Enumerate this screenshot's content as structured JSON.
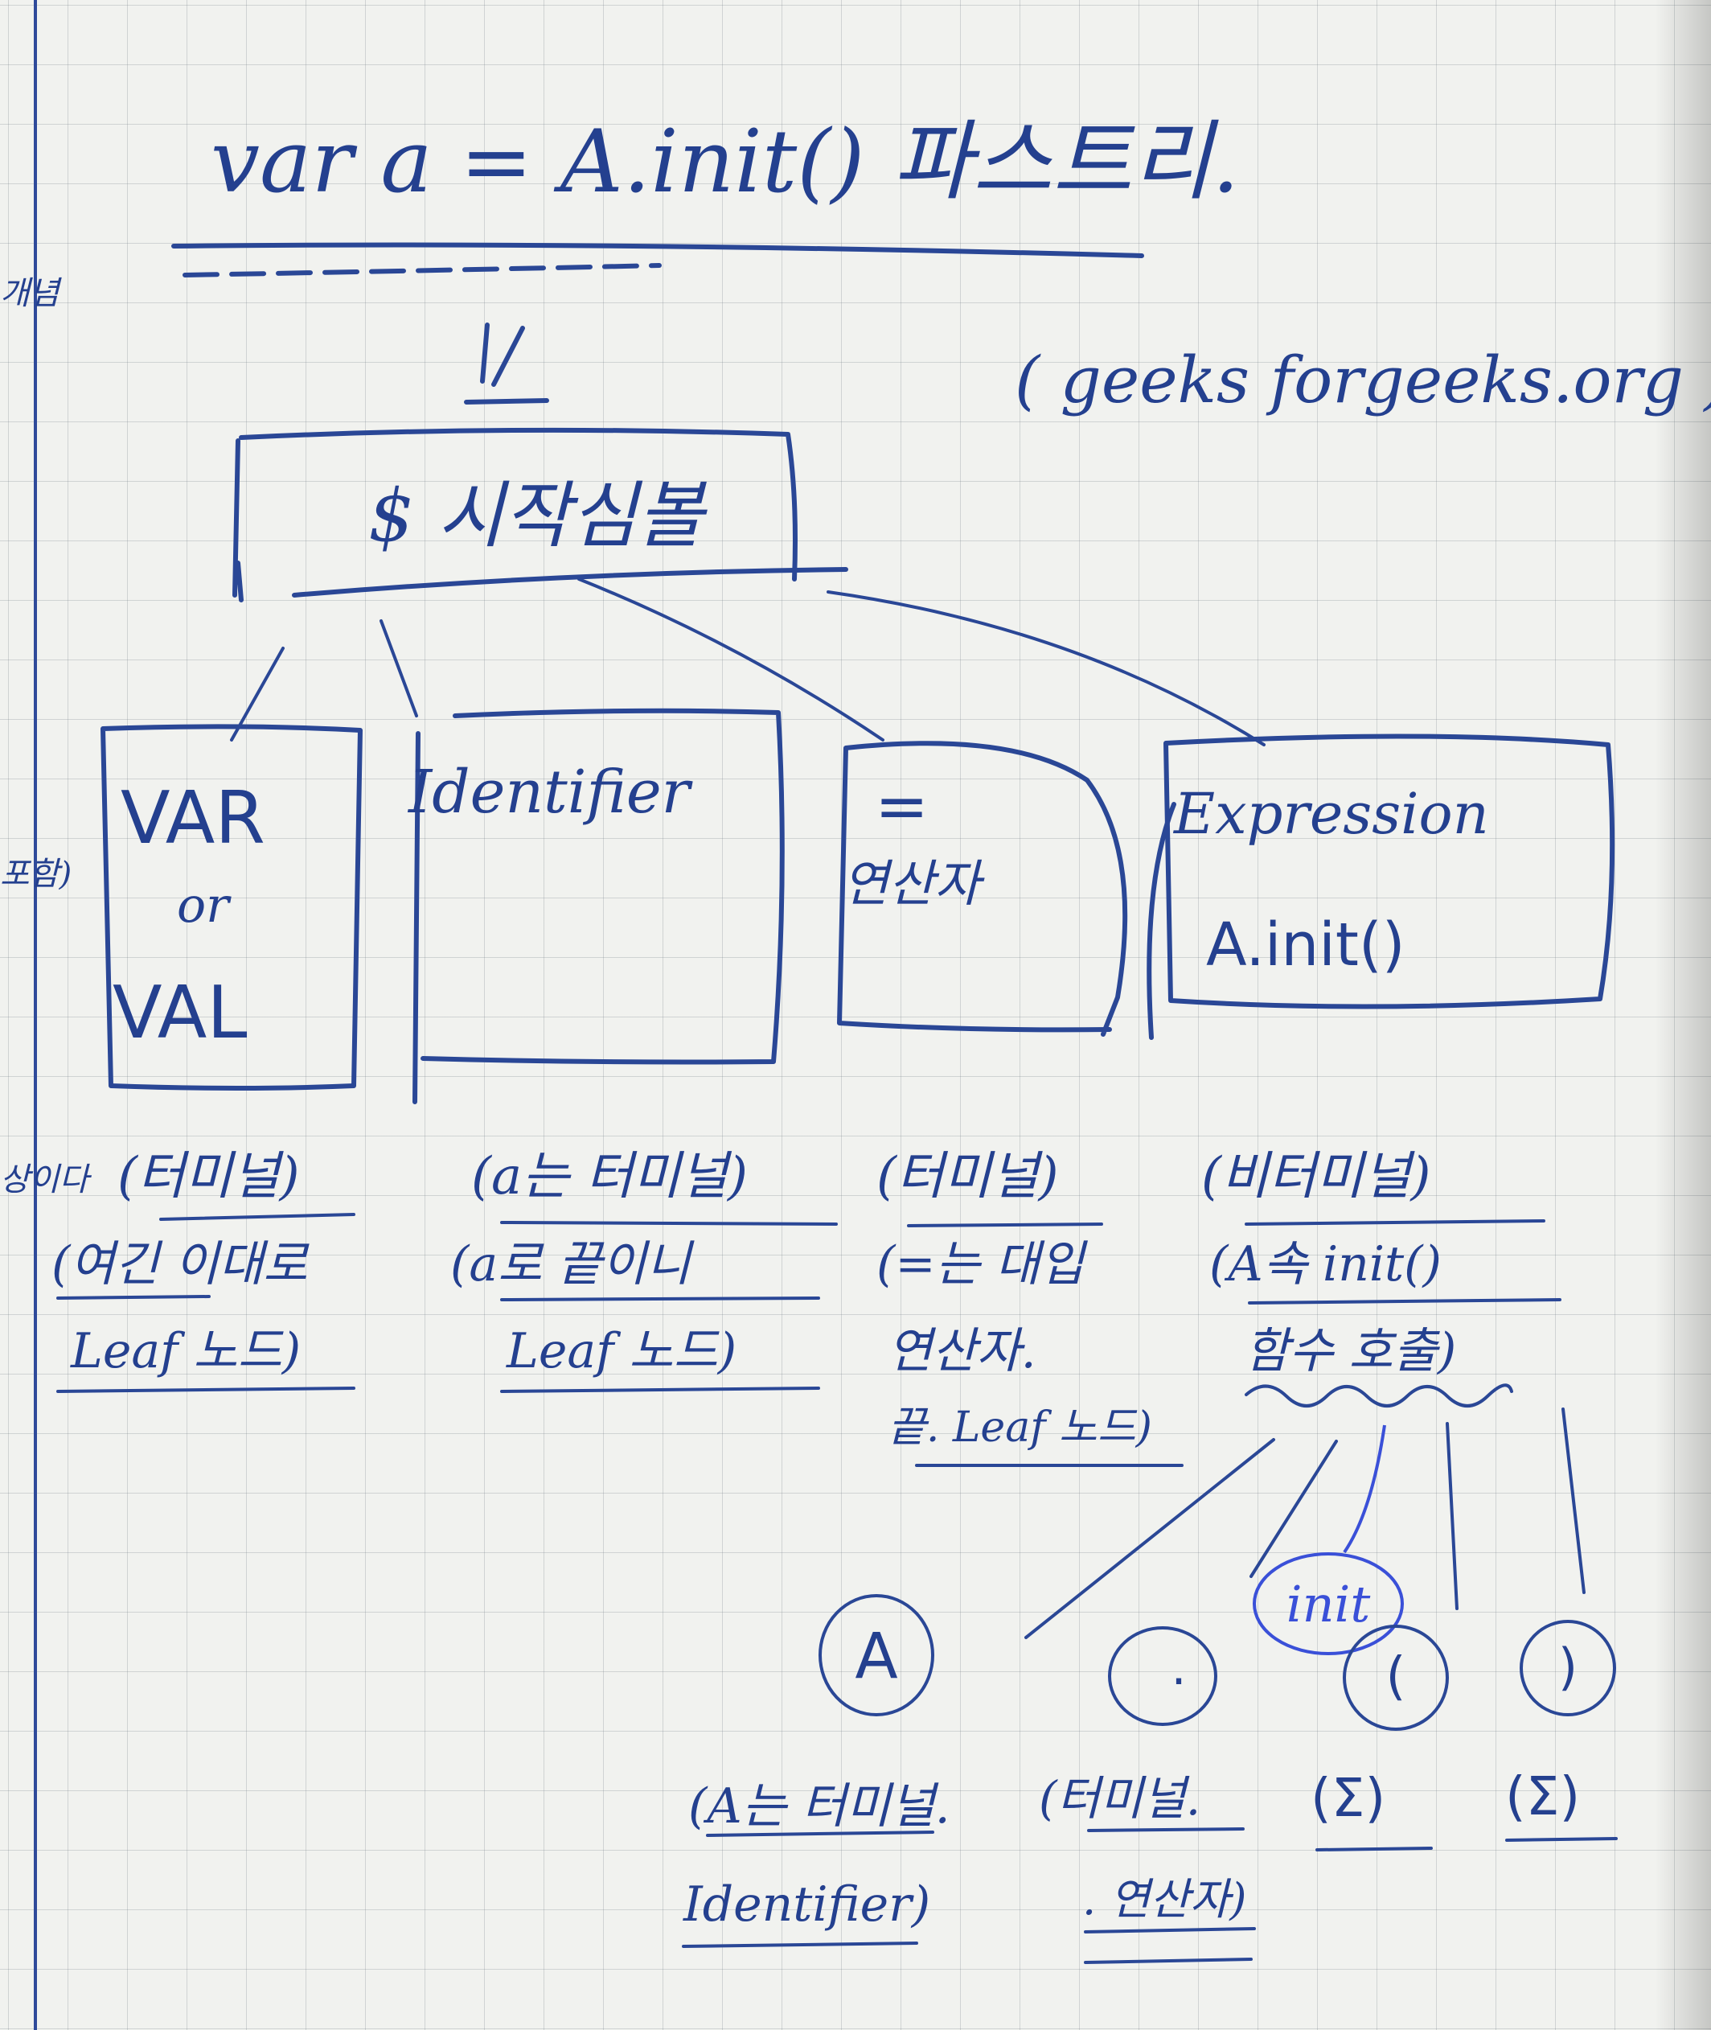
{
  "title": {
    "text": "var  a  =  A.init()  파스트리."
  },
  "source": "( geeks forgeeks.org )",
  "margin_notes": {
    "top": "개념",
    "mid": "포함)",
    "low": "상이다"
  },
  "root": {
    "label": "$ 시작심볼"
  },
  "children": [
    {
      "box_lines": [
        "VAR",
        "or",
        "VAL"
      ],
      "note_lines": [
        "(터미널)",
        "(여긴 이대로",
        "Leaf 노드)"
      ]
    },
    {
      "box_lines": [
        "Identifier"
      ],
      "note_lines": [
        "(a는 터미널)",
        "(a로 끝이니",
        "Leaf 노드)"
      ]
    },
    {
      "box_lines": [
        "=",
        "연산자"
      ],
      "note_lines": [
        "(터미널)",
        "(=는 대입",
        "연산자.",
        "끝. Leaf 노드)"
      ]
    },
    {
      "box_lines": [
        "Expression",
        "A.init()"
      ],
      "note_lines": [
        "(비터미널)",
        "(A속 init()",
        "함수 호출)"
      ]
    }
  ],
  "expression_children": [
    {
      "symbol": "A",
      "note_lines": [
        "(A는 터미널.",
        "Identifier)"
      ]
    },
    {
      "symbol": ".",
      "note_lines": [
        "(터미널.",
        ". 연산자)"
      ]
    },
    {
      "symbol": "init",
      "note_lines": []
    },
    {
      "symbol": "(",
      "note_lines": [
        "(Σ)"
      ]
    },
    {
      "symbol": ")",
      "note_lines": [
        "(Σ)"
      ]
    }
  ],
  "colors": {
    "ink": "#2a4796",
    "ink_bright": "#3a50d8",
    "paper": "#f1f2ef",
    "grid": "#9aa2aa"
  }
}
